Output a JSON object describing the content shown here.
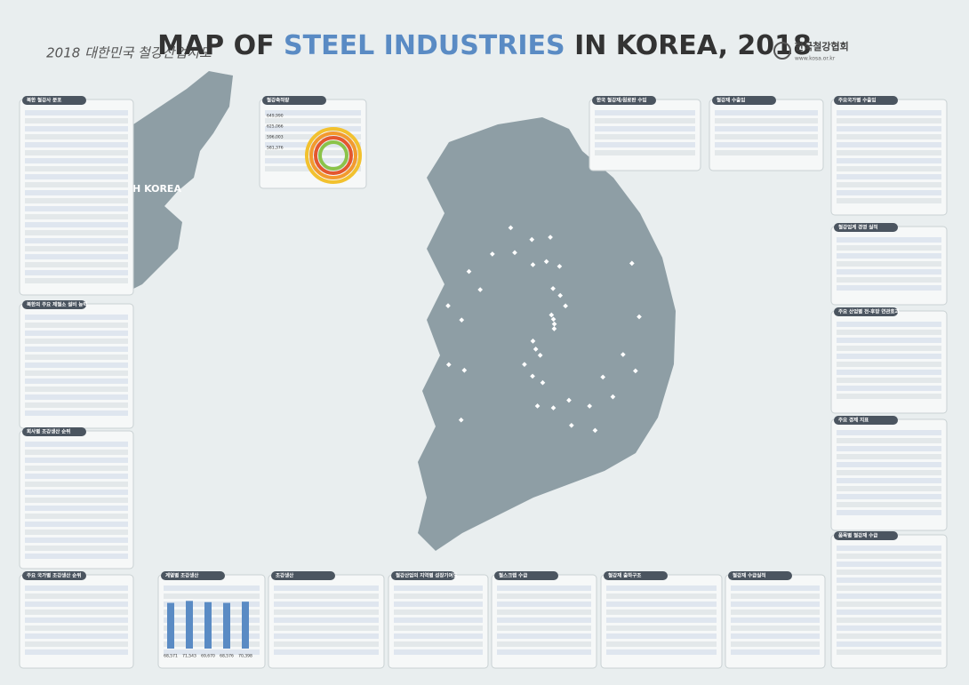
{
  "header": {
    "subtitle": "2018 대한민국 철강산업지도",
    "title_a": "MAP OF ",
    "title_b": "STEEL INDUSTRIES",
    "title_c": " IN KOREA, 2018",
    "org": "한국철강협회",
    "url": "www.kosa.or.kr"
  },
  "map": {
    "north_label": "NORTH KOREA"
  },
  "panels": [
    {
      "title": "북한 철강사 분포"
    },
    {
      "title": "북한의 주요 제철소 설비 능력"
    },
    {
      "title": "회사별 조강생산 순위"
    },
    {
      "title": "주요 국가별 조강생산 순위"
    },
    {
      "title": "철강축적량"
    },
    {
      "title": "한국 철강재/원료판 수입"
    },
    {
      "title": "철강재 수출입"
    },
    {
      "title": "주요국가별 수출입"
    },
    {
      "title": "철강업계 경영 실적"
    },
    {
      "title": "주요 산업별 전·후방 연관효과"
    },
    {
      "title": "주요 경제 지표"
    },
    {
      "title": "품목별 철강재 수급"
    },
    {
      "title": "계열별 조강생산"
    },
    {
      "title": "조강생산"
    },
    {
      "title": "철강산업의 지역별 성장기여도"
    },
    {
      "title": "철스크랩 수급"
    },
    {
      "title": "철강재 출하구조"
    },
    {
      "title": "철강재 수급실적"
    }
  ],
  "stock": [
    "649,990",
    "625,066",
    "596,003",
    "581,376"
  ],
  "bars": [
    {
      "value": 68571,
      "label": "68,571"
    },
    {
      "value": 71543,
      "label": "71,543"
    },
    {
      "value": 69670,
      "label": "69,670"
    },
    {
      "value": 68576,
      "label": "68,576"
    },
    {
      "value": 70398,
      "label": "70,398"
    }
  ]
}
